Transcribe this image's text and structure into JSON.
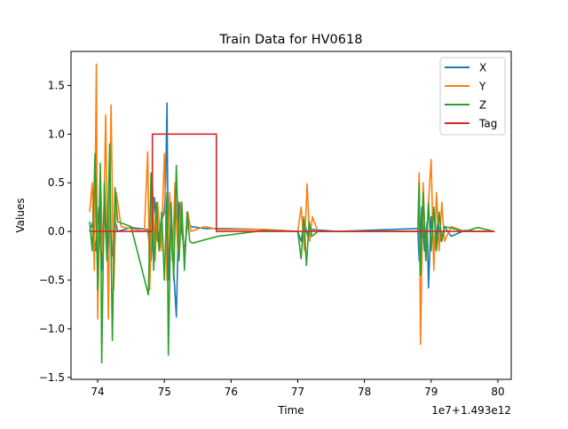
{
  "chart_data": {
    "type": "line",
    "title": "Train Data for HV0618",
    "xlabel": "Time",
    "ylabel": "Values",
    "x_offset_label": "1e7+1.493e12",
    "xlim": [
      73.6,
      80.2
    ],
    "ylim": [
      -1.52,
      1.85
    ],
    "x_ticks": [
      74,
      75,
      76,
      77,
      78,
      79,
      80
    ],
    "x_tick_labels": [
      "74",
      "75",
      "76",
      "77",
      "78",
      "79",
      "80"
    ],
    "y_ticks": [
      -1.5,
      -1.0,
      -0.5,
      0.0,
      0.5,
      1.0,
      1.5
    ],
    "y_tick_labels": [
      "−1.5",
      "−1.0",
      "−0.5",
      "0.0",
      "0.5",
      "1.0",
      "1.5"
    ],
    "grid": false,
    "legend_position": "top-right",
    "series": [
      {
        "name": "X",
        "color": "#1f77b4",
        "points": [
          [
            73.88,
            0.0
          ],
          [
            73.93,
            0.1
          ],
          [
            73.97,
            -0.2
          ],
          [
            74.02,
            0.25
          ],
          [
            74.06,
            -0.4
          ],
          [
            74.1,
            0.3
          ],
          [
            74.14,
            -0.3
          ],
          [
            74.18,
            0.15
          ],
          [
            74.22,
            -0.25
          ],
          [
            74.26,
            0.12
          ],
          [
            74.3,
            0.0
          ],
          [
            74.5,
            0.04
          ],
          [
            74.75,
            0.02
          ],
          [
            74.8,
            -0.3
          ],
          [
            74.85,
            0.35
          ],
          [
            74.9,
            -0.1
          ],
          [
            74.95,
            0.1
          ],
          [
            75.0,
            0.2
          ],
          [
            75.02,
            0.5
          ],
          [
            75.04,
            1.32
          ],
          [
            75.06,
            -0.5
          ],
          [
            75.1,
            0.2
          ],
          [
            75.14,
            -0.4
          ],
          [
            75.18,
            -0.88
          ],
          [
            75.22,
            0.3
          ],
          [
            75.26,
            0.0
          ],
          [
            75.3,
            -0.2
          ],
          [
            75.35,
            0.1
          ],
          [
            75.4,
            0.05
          ],
          [
            75.6,
            0.03
          ],
          [
            75.8,
            0.03
          ],
          [
            76.5,
            0.02
          ],
          [
            77.0,
            0.0
          ],
          [
            77.05,
            -0.1
          ],
          [
            77.1,
            0.1
          ],
          [
            77.15,
            -0.05
          ],
          [
            77.2,
            0.02
          ],
          [
            77.6,
            0.0
          ],
          [
            78.8,
            0.03
          ],
          [
            78.82,
            -0.3
          ],
          [
            78.86,
            0.25
          ],
          [
            78.9,
            -0.2
          ],
          [
            78.94,
            0.1
          ],
          [
            78.96,
            -0.58
          ],
          [
            79.0,
            0.15
          ],
          [
            79.05,
            -0.2
          ],
          [
            79.1,
            0.1
          ],
          [
            79.15,
            -0.1
          ],
          [
            79.2,
            0.05
          ],
          [
            79.3,
            -0.05
          ],
          [
            79.5,
            0.01
          ],
          [
            79.7,
            0.0
          ],
          [
            79.95,
            0.0
          ]
        ]
      },
      {
        "name": "Y",
        "color": "#ff7f0e",
        "points": [
          [
            73.88,
            0.2
          ],
          [
            73.92,
            0.5
          ],
          [
            73.95,
            -0.4
          ],
          [
            73.98,
            1.72
          ],
          [
            74.0,
            -0.9
          ],
          [
            74.04,
            0.6
          ],
          [
            74.08,
            -0.3
          ],
          [
            74.12,
            1.2
          ],
          [
            74.16,
            -0.9
          ],
          [
            74.2,
            1.3
          ],
          [
            74.24,
            -0.6
          ],
          [
            74.28,
            0.4
          ],
          [
            74.35,
            0.05
          ],
          [
            74.7,
            0.0
          ],
          [
            74.75,
            0.82
          ],
          [
            74.78,
            -0.6
          ],
          [
            74.82,
            0.5
          ],
          [
            74.86,
            -0.3
          ],
          [
            74.9,
            0.3
          ],
          [
            74.95,
            -0.2
          ],
          [
            75.0,
            0.8
          ],
          [
            75.04,
            -0.5
          ],
          [
            75.08,
            0.4
          ],
          [
            75.12,
            -0.3
          ],
          [
            75.16,
            0.5
          ],
          [
            75.2,
            -0.2
          ],
          [
            75.25,
            0.3
          ],
          [
            75.3,
            -0.3
          ],
          [
            75.35,
            0.2
          ],
          [
            75.4,
            0.0
          ],
          [
            75.6,
            0.05
          ],
          [
            75.8,
            0.02
          ],
          [
            76.5,
            0.02
          ],
          [
            77.0,
            0.0
          ],
          [
            77.05,
            0.25
          ],
          [
            77.1,
            -0.2
          ],
          [
            77.14,
            0.49
          ],
          [
            77.18,
            -0.1
          ],
          [
            77.22,
            0.15
          ],
          [
            77.3,
            0.0
          ],
          [
            78.8,
            0.0
          ],
          [
            78.82,
            0.6
          ],
          [
            78.84,
            -1.16
          ],
          [
            78.88,
            0.5
          ],
          [
            78.92,
            -0.3
          ],
          [
            78.96,
            0.3
          ],
          [
            79.0,
            0.74
          ],
          [
            79.04,
            -0.4
          ],
          [
            79.08,
            0.4
          ],
          [
            79.12,
            -0.2
          ],
          [
            79.16,
            0.3
          ],
          [
            79.2,
            -0.1
          ],
          [
            79.3,
            0.05
          ],
          [
            79.5,
            0.0
          ],
          [
            79.95,
            0.0
          ]
        ]
      },
      {
        "name": "Z",
        "color": "#2ca02c",
        "points": [
          [
            73.88,
            0.1
          ],
          [
            73.92,
            -0.2
          ],
          [
            73.96,
            0.8
          ],
          [
            74.0,
            -0.6
          ],
          [
            74.04,
            0.7
          ],
          [
            74.06,
            -1.35
          ],
          [
            74.1,
            0.5
          ],
          [
            74.14,
            -0.3
          ],
          [
            74.18,
            0.9
          ],
          [
            74.22,
            -1.12
          ],
          [
            74.26,
            0.45
          ],
          [
            74.3,
            0.1
          ],
          [
            74.5,
            0.05
          ],
          [
            74.76,
            -0.65
          ],
          [
            74.8,
            0.6
          ],
          [
            74.84,
            -0.4
          ],
          [
            74.88,
            0.3
          ],
          [
            74.92,
            -0.2
          ],
          [
            74.96,
            0.2
          ],
          [
            75.0,
            -0.5
          ],
          [
            75.04,
            0.4
          ],
          [
            75.06,
            -1.27
          ],
          [
            75.1,
            0.3
          ],
          [
            75.14,
            -0.5
          ],
          [
            75.18,
            0.68
          ],
          [
            75.22,
            -0.3
          ],
          [
            75.26,
            0.3
          ],
          [
            75.3,
            -0.4
          ],
          [
            75.34,
            0.2
          ],
          [
            75.38,
            -0.1
          ],
          [
            75.42,
            -0.12
          ],
          [
            75.8,
            -0.05
          ],
          [
            76.5,
            0.01
          ],
          [
            77.0,
            0.0
          ],
          [
            77.05,
            -0.28
          ],
          [
            77.09,
            0.15
          ],
          [
            77.13,
            -0.35
          ],
          [
            77.17,
            0.1
          ],
          [
            77.21,
            -0.05
          ],
          [
            77.3,
            0.0
          ],
          [
            78.8,
            0.0
          ],
          [
            78.82,
            0.5
          ],
          [
            78.84,
            -0.45
          ],
          [
            78.88,
            0.4
          ],
          [
            78.92,
            -0.3
          ],
          [
            78.96,
            0.3
          ],
          [
            79.0,
            -0.2
          ],
          [
            79.04,
            0.25
          ],
          [
            79.08,
            -0.2
          ],
          [
            79.12,
            0.2
          ],
          [
            79.16,
            -0.1
          ],
          [
            79.2,
            0.05
          ],
          [
            79.5,
            0.0
          ],
          [
            79.7,
            0.04
          ],
          [
            79.95,
            0.0
          ]
        ]
      },
      {
        "name": "Tag",
        "color": "#d62728",
        "points": [
          [
            73.88,
            0.0
          ],
          [
            74.82,
            0.0
          ],
          [
            74.82,
            1.0
          ],
          [
            75.78,
            1.0
          ],
          [
            75.78,
            0.0
          ],
          [
            79.95,
            0.0
          ]
        ]
      }
    ]
  }
}
